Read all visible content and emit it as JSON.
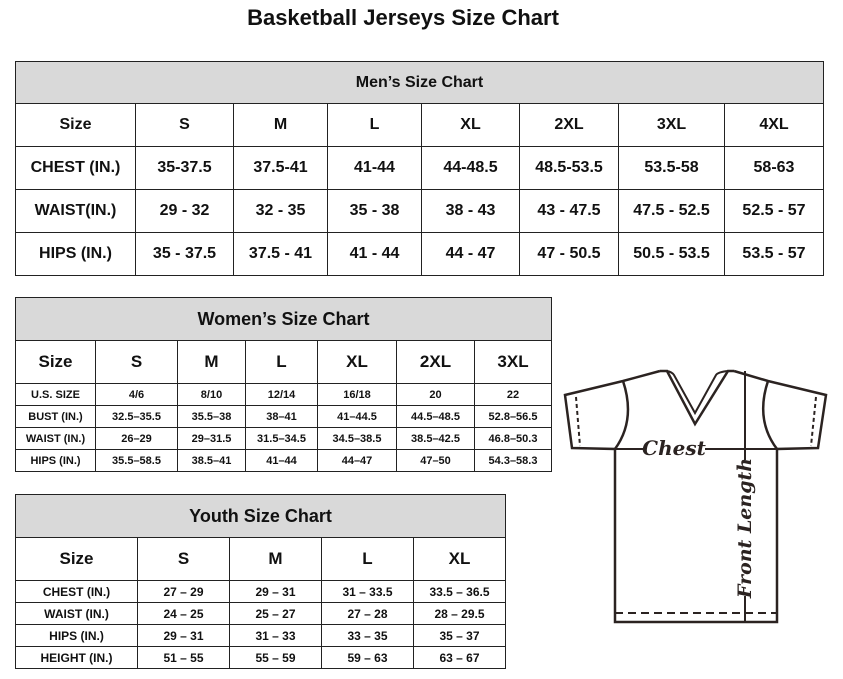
{
  "title": "Basketball Jerseys Size Chart",
  "men": {
    "title": "Men’s Size Chart",
    "rows": [
      [
        "Size",
        "S",
        "M",
        "L",
        "XL",
        "2XL",
        "3XL",
        "4XL"
      ],
      [
        "CHEST (IN.)",
        "35-37.5",
        "37.5-41",
        "41-44",
        "44-48.5",
        "48.5-53.5",
        "53.5-58",
        "58-63"
      ],
      [
        "WAIST(IN.)",
        "29 - 32",
        "32 - 35",
        "35 - 38",
        "38 - 43",
        "43 - 47.5",
        "47.5 - 52.5",
        "52.5 - 57"
      ],
      [
        "HIPS (IN.)",
        "35 - 37.5",
        "37.5 - 41",
        "41 - 44",
        "44 - 47",
        "47 - 50.5",
        "50.5 - 53.5",
        "53.5 - 57"
      ]
    ]
  },
  "women": {
    "title": "Women’s Size Chart",
    "rows": [
      [
        "Size",
        "S",
        "M",
        "L",
        "XL",
        "2XL",
        "3XL"
      ],
      [
        "U.S.  SIZE",
        "4/6",
        "8/10",
        "12/14",
        "16/18",
        "20",
        "22"
      ],
      [
        "BUST  (IN.)",
        "32.5–35.5",
        "35.5–38",
        "38–41",
        "41–44.5",
        "44.5–48.5",
        "52.8–56.5"
      ],
      [
        "WAIST  (IN.)",
        "26–29",
        "29–31.5",
        "31.5–34.5",
        "34.5–38.5",
        "38.5–42.5",
        "46.8–50.3"
      ],
      [
        "HIPS  (IN.)",
        "35.5–58.5",
        "38.5–41",
        "41–44",
        "44–47",
        "47–50",
        "54.3–58.3"
      ]
    ]
  },
  "youth": {
    "title": "Youth Size Chart",
    "rows": [
      [
        "Size",
        "S",
        "M",
        "L",
        "XL"
      ],
      [
        "CHEST  (IN.)",
        "27  –  29",
        "29  –  31",
        "31  –  33.5",
        "33.5  –  36.5"
      ],
      [
        "WAIST  (IN.)",
        "24  –  25",
        "25  –  27",
        "27  –  28",
        "28  –  29.5"
      ],
      [
        "HIPS  (IN.)",
        "29  –  31",
        "31  –  33",
        "33  –  35",
        "35  –  37"
      ],
      [
        "HEIGHT  (IN.)",
        "51  –  55",
        "55  –  59",
        "59  –  63",
        "63  –  67"
      ]
    ]
  },
  "diagram": {
    "chest_label": "Chest",
    "length_label": "Front Length",
    "line_color": "#2b2321"
  }
}
